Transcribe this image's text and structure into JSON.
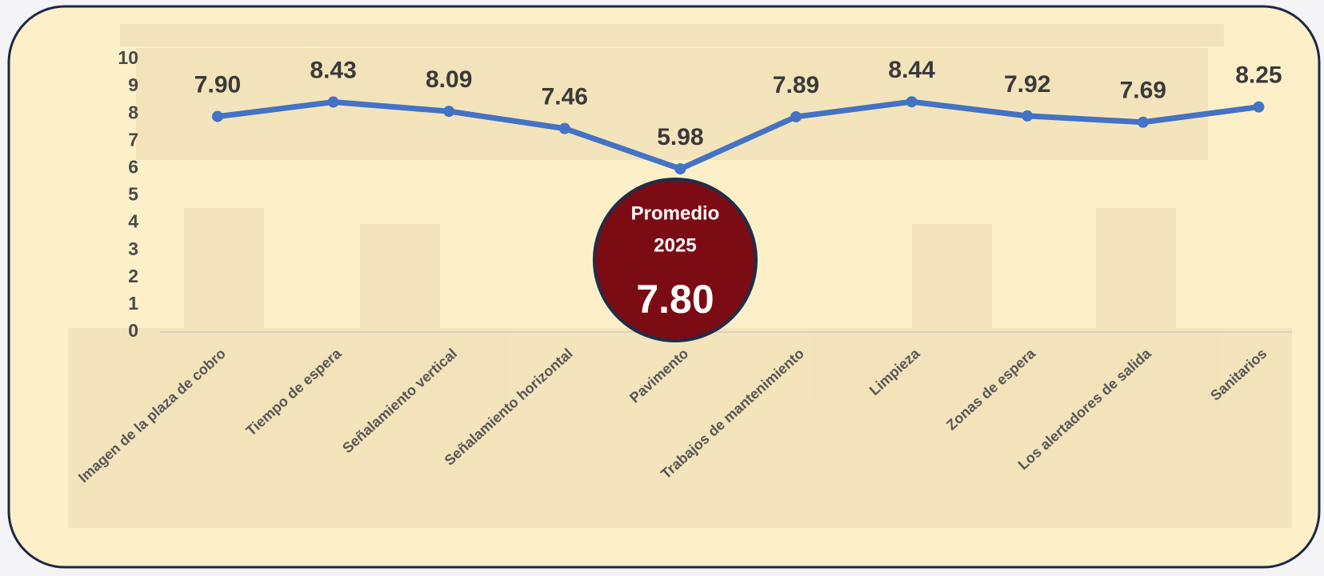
{
  "chart_data": {
    "type": "line",
    "categories": [
      "Imagen de la plaza de cobro",
      "Tiempo de espera",
      "Señalamiento vertical",
      "Señalamiento horizontal",
      "Pavimento",
      "Trabajos de mantenimiento",
      "Limpieza",
      "Zonas de espera",
      "Los alertadores de salida",
      "Sanitarios"
    ],
    "series": [
      {
        "name": null,
        "color": "#4472c4",
        "values": [
          7.9,
          8.43,
          8.09,
          7.46,
          5.98,
          7.89,
          8.44,
          7.92,
          7.69,
          8.25
        ],
        "value_labels": [
          "7.90",
          "8.43",
          "8.09",
          "7.46",
          "5.98",
          "7.89",
          "8.44",
          "7.92",
          "7.69",
          "8.25"
        ]
      }
    ],
    "ylim": [
      0,
      10
    ],
    "yticks": [
      0,
      1,
      2,
      3,
      4,
      5,
      6,
      7,
      8,
      9,
      10
    ],
    "annotation": {
      "lines": [
        "Promedio",
        "2025"
      ],
      "value": "7.80"
    }
  }
}
